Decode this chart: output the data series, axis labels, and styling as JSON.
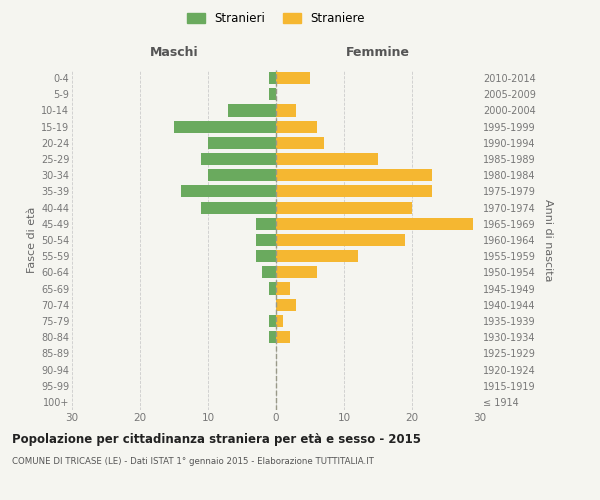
{
  "age_groups": [
    "100+",
    "95-99",
    "90-94",
    "85-89",
    "80-84",
    "75-79",
    "70-74",
    "65-69",
    "60-64",
    "55-59",
    "50-54",
    "45-49",
    "40-44",
    "35-39",
    "30-34",
    "25-29",
    "20-24",
    "15-19",
    "10-14",
    "5-9",
    "0-4"
  ],
  "birth_years": [
    "≤ 1914",
    "1915-1919",
    "1920-1924",
    "1925-1929",
    "1930-1934",
    "1935-1939",
    "1940-1944",
    "1945-1949",
    "1950-1954",
    "1955-1959",
    "1960-1964",
    "1965-1969",
    "1970-1974",
    "1975-1979",
    "1980-1984",
    "1985-1989",
    "1990-1994",
    "1995-1999",
    "2000-2004",
    "2005-2009",
    "2010-2014"
  ],
  "maschi": [
    0,
    0,
    0,
    0,
    1,
    1,
    0,
    1,
    2,
    3,
    3,
    3,
    11,
    14,
    10,
    11,
    10,
    15,
    7,
    1,
    1
  ],
  "femmine": [
    0,
    0,
    0,
    0,
    2,
    1,
    3,
    2,
    6,
    12,
    19,
    29,
    20,
    23,
    23,
    15,
    7,
    6,
    3,
    0,
    5
  ],
  "male_color": "#6aaa5e",
  "female_color": "#f5b731",
  "title": "Popolazione per cittadinanza straniera per età e sesso - 2015",
  "subtitle": "COMUNE DI TRICASE (LE) - Dati ISTAT 1° gennaio 2015 - Elaborazione TUTTITALIA.IT",
  "xlabel_left": "Maschi",
  "xlabel_right": "Femmine",
  "ylabel_left": "Fasce di età",
  "ylabel_right": "Anni di nascita",
  "legend_male": "Stranieri",
  "legend_female": "Straniere",
  "xlim": 30,
  "background_color": "#f5f5f0",
  "grid_color": "#cccccc",
  "dashed_line_color": "#999988"
}
